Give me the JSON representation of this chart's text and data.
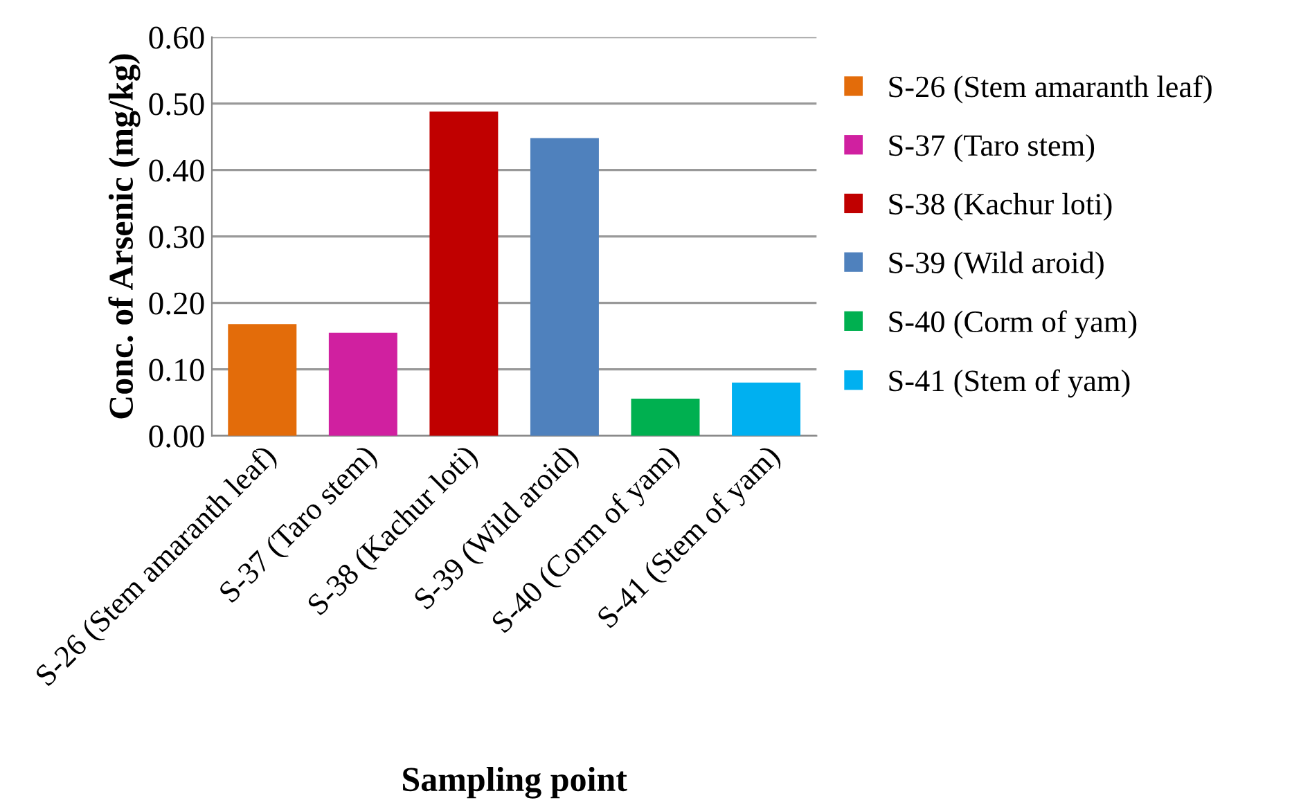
{
  "chart_data": {
    "type": "bar",
    "categories": [
      "S-26 (Stem amaranth leaf)",
      "S-37 (Taro stem)",
      "S-38 (Kachur loti)",
      "S-39 (Wild aroid)",
      "S-40 (Corm of yam)",
      "S-41 (Stem of yam)"
    ],
    "series": [
      {
        "name": "S-26 (Stem amaranth leaf)",
        "color": "#e36c0a",
        "values": [
          0.168,
          null,
          null,
          null,
          null,
          null
        ]
      },
      {
        "name": "S-37 (Taro stem)",
        "color": "#d020a0",
        "values": [
          null,
          0.155,
          null,
          null,
          null,
          null
        ]
      },
      {
        "name": "S-38 (Kachur loti)",
        "color": "#c00000",
        "values": [
          null,
          null,
          0.488,
          null,
          null,
          null
        ]
      },
      {
        "name": "S-39 (Wild aroid)",
        "color": "#4f81bd",
        "values": [
          null,
          null,
          null,
          0.448,
          null,
          null
        ]
      },
      {
        "name": "S-40 (Corm of yam)",
        "color": "#00b050",
        "values": [
          null,
          null,
          null,
          null,
          0.056,
          null
        ]
      },
      {
        "name": "S-41 (Stem of yam)",
        "color": "#00b0f0",
        "values": [
          null,
          null,
          null,
          null,
          null,
          0.08
        ]
      }
    ],
    "xlabel": "Sampling point",
    "ylabel": "Conc. of Arsenic (mg/kg)",
    "ylim": [
      0,
      0.6
    ],
    "yticks": [
      {
        "value": 0,
        "label": "0.00"
      },
      {
        "value": 0.1,
        "label": "0.10"
      },
      {
        "value": 0.2,
        "label": "0.20"
      },
      {
        "value": 0.3,
        "label": "0.30"
      },
      {
        "value": 0.4,
        "label": "0.40"
      },
      {
        "value": 0.5,
        "label": "0.50"
      },
      {
        "value": 0.6,
        "label": "0.60"
      }
    ],
    "grid": "y",
    "legend": "right"
  }
}
